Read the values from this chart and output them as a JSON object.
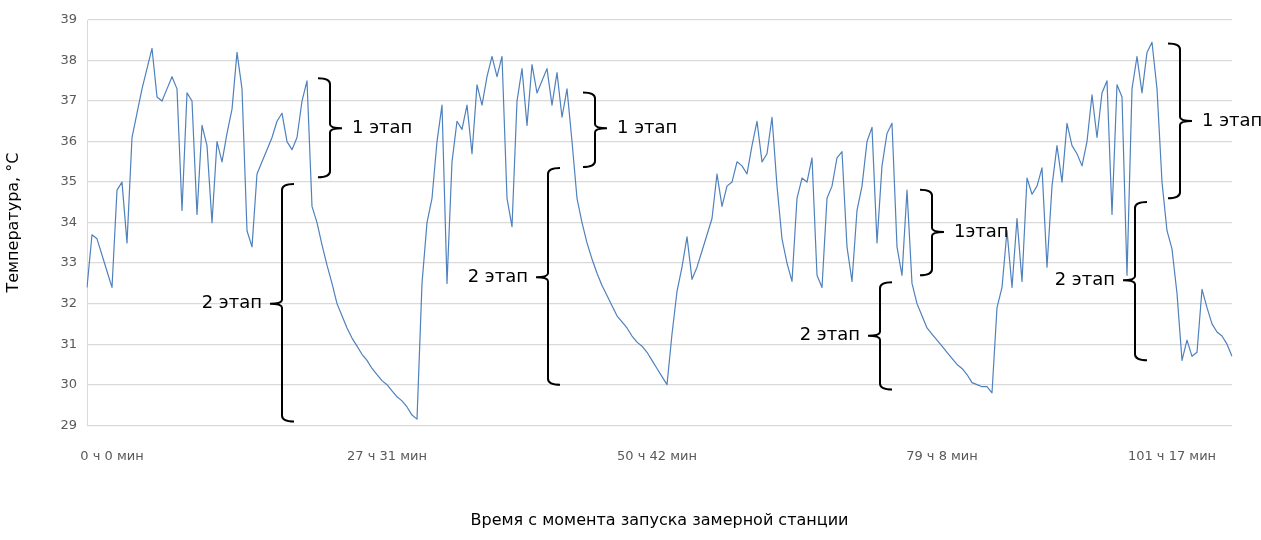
{
  "chart_data": {
    "type": "line",
    "xlabel": "Время с момента запуска замерной станции",
    "ylabel": "Температура, °C",
    "categories": [
      null,
      null,
      null,
      null,
      null,
      "0 ч 0 мин",
      null,
      null,
      null,
      null,
      null,
      null,
      null,
      null,
      null,
      null,
      null,
      null,
      null,
      null,
      null,
      null,
      null,
      null,
      null,
      null,
      null,
      null,
      null,
      null,
      null,
      null,
      null,
      null,
      null,
      null,
      null,
      null,
      null,
      null,
      null,
      null,
      null,
      null,
      null,
      null,
      null,
      null,
      null,
      null,
      null,
      null,
      null,
      null,
      null,
      null,
      null,
      null,
      null,
      null,
      "27 ч 31 мин",
      null,
      null,
      null,
      null,
      null,
      null,
      null,
      null,
      null,
      null,
      null,
      null,
      null,
      null,
      null,
      null,
      null,
      null,
      null,
      null,
      null,
      null,
      null,
      null,
      null,
      null,
      null,
      null,
      null,
      null,
      null,
      null,
      null,
      null,
      null,
      null,
      null,
      null,
      null,
      null,
      null,
      null,
      null,
      null,
      null,
      null,
      null,
      null,
      null,
      null,
      null,
      null,
      null,
      "50 ч 42 мин",
      null,
      null,
      null,
      null,
      null,
      null,
      null,
      null,
      null,
      null,
      null,
      null,
      null,
      null,
      null,
      null,
      null,
      null,
      null,
      null,
      null,
      null,
      null,
      null,
      null,
      null,
      null,
      null,
      null,
      null,
      null,
      null,
      null,
      null,
      null,
      null,
      null,
      null,
      null,
      null,
      null,
      null,
      null,
      null,
      null,
      null,
      null,
      null,
      null,
      null,
      null,
      null,
      null,
      null,
      null,
      null,
      "79 ч 8 мин",
      null,
      null,
      null,
      null,
      null,
      null,
      null,
      null,
      null,
      null,
      null,
      null,
      null,
      null,
      null,
      null,
      null,
      null,
      null,
      null,
      null,
      null,
      null,
      null,
      null,
      null,
      null,
      null,
      null,
      null,
      null,
      null,
      null,
      null,
      null,
      null,
      null,
      null,
      null,
      null,
      null,
      null,
      null,
      null,
      null,
      "101 ч 17 мин",
      null,
      null,
      null,
      null,
      null,
      null,
      null,
      null,
      null,
      null,
      null,
      null
    ],
    "values": [
      32.4,
      33.7,
      33.6,
      33.2,
      32.8,
      32.4,
      34.8,
      35.0,
      33.5,
      36.1,
      36.7,
      37.3,
      37.8,
      38.3,
      37.1,
      37.0,
      37.3,
      37.6,
      37.3,
      34.3,
      37.2,
      37.0,
      34.2,
      36.4,
      35.9,
      34.0,
      36.0,
      35.5,
      36.2,
      36.8,
      38.2,
      37.3,
      33.8,
      33.4,
      35.2,
      35.5,
      35.8,
      36.1,
      36.5,
      36.7,
      36.0,
      35.8,
      36.1,
      37.0,
      37.5,
      34.4,
      34.0,
      33.45,
      32.95,
      32.5,
      32.0,
      31.7,
      31.4,
      31.15,
      30.95,
      30.75,
      30.6,
      30.4,
      30.25,
      30.1,
      30.0,
      29.85,
      29.7,
      29.6,
      29.45,
      29.25,
      29.15,
      32.5,
      34.0,
      34.6,
      36.0,
      36.9,
      32.5,
      35.5,
      36.5,
      36.3,
      36.9,
      35.7,
      37.4,
      36.9,
      37.6,
      38.1,
      37.6,
      38.1,
      34.6,
      33.9,
      37.0,
      37.8,
      36.4,
      37.9,
      37.2,
      37.5,
      37.8,
      36.9,
      37.7,
      36.6,
      37.3,
      36.0,
      34.6,
      34.0,
      33.5,
      33.1,
      32.75,
      32.45,
      32.2,
      31.95,
      31.7,
      31.55,
      31.4,
      31.2,
      31.05,
      30.95,
      30.8,
      30.6,
      30.4,
      30.2,
      30.0,
      31.25,
      32.3,
      32.9,
      33.65,
      32.6,
      32.9,
      33.3,
      33.7,
      34.1,
      35.2,
      34.4,
      34.9,
      35.0,
      35.5,
      35.4,
      35.2,
      35.9,
      36.5,
      35.5,
      35.7,
      36.6,
      34.9,
      33.6,
      33.0,
      32.55,
      34.6,
      35.1,
      35.0,
      35.6,
      32.7,
      32.4,
      34.6,
      34.9,
      35.6,
      35.75,
      33.4,
      32.55,
      34.3,
      34.9,
      36.0,
      36.35,
      33.5,
      35.4,
      36.2,
      36.45,
      33.4,
      32.7,
      34.8,
      32.5,
      32.0,
      31.7,
      31.4,
      31.25,
      31.1,
      30.95,
      30.8,
      30.65,
      30.5,
      30.4,
      30.25,
      30.05,
      30.0,
      29.95,
      29.95,
      29.8,
      31.9,
      32.4,
      33.8,
      32.4,
      34.1,
      32.55,
      35.1,
      34.7,
      34.9,
      35.35,
      32.9,
      34.9,
      35.9,
      35.0,
      36.45,
      35.9,
      35.7,
      35.4,
      36.0,
      37.15,
      36.1,
      37.2,
      37.5,
      34.2,
      37.4,
      37.1,
      32.7,
      37.3,
      38.1,
      37.2,
      38.2,
      38.45,
      37.3,
      35.0,
      33.8,
      33.35,
      32.25,
      30.6,
      31.1,
      30.7,
      30.8,
      32.35,
      31.9,
      31.5,
      31.3,
      31.2,
      31.0,
      30.7
    ],
    "color": "#4f81bd",
    "ylim": [
      29,
      39
    ],
    "yticks": [
      29,
      30,
      31,
      32,
      33,
      34,
      35,
      36,
      37,
      38,
      39
    ],
    "grid": "y",
    "marker": "none",
    "line_style": "solid",
    "annotations": [
      "1 этап",
      "2 этап",
      "1 этап",
      "2 этап",
      "1этап",
      "2 этап",
      "1 этап",
      "2 этап"
    ]
  }
}
